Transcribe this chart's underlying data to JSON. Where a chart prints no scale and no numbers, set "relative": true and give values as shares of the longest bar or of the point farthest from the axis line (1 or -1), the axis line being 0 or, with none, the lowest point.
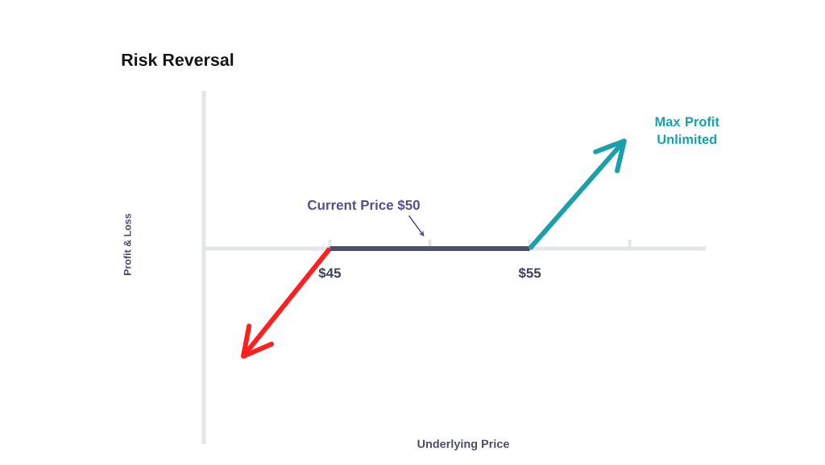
{
  "chart_data": {
    "type": "line",
    "title": "Risk Reversal",
    "relative": true,
    "xlim": [
      38.7,
      63.8
    ],
    "xticks": [
      {
        "value": 45,
        "label": "$45"
      },
      {
        "value": 50,
        "label": null
      },
      {
        "value": 55,
        "label": "$55"
      },
      {
        "value": 60,
        "label": null
      }
    ],
    "series": [
      {
        "color": "#ff1f1f",
        "x": [
          45,
          40.6
        ],
        "values": [
          0,
          -1
        ]
      },
      {
        "color": "#4b4e6d",
        "x": [
          45,
          55
        ],
        "values": [
          0,
          0
        ]
      },
      {
        "color": "#1ba0ab",
        "x": [
          55,
          59.8
        ],
        "values": [
          0,
          1
        ]
      }
    ],
    "marker": "none",
    "annotations": [
      {
        "text": "Current Price $50",
        "x": 50,
        "y": 0
      },
      {
        "text": "Max Profit Unlimited",
        "x": 59.8,
        "y": 1
      },
      "Profit & Loss",
      "Underlying Price"
    ]
  }
}
